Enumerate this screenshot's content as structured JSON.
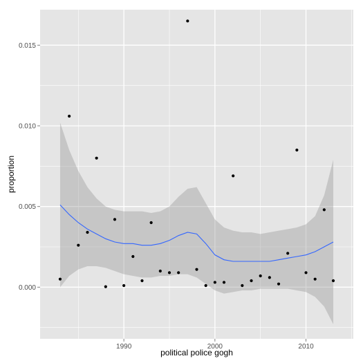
{
  "chart_data": {
    "type": "scatter",
    "xlabel": "political police gogh",
    "ylabel": "proportion",
    "xlim": [
      1980.8,
      2015.2
    ],
    "ylim": [
      -0.0032,
      0.0172
    ],
    "x_ticks": [
      1990,
      2000,
      2010
    ],
    "x_tick_labels": [
      "1990",
      "2000",
      "2010"
    ],
    "y_ticks": [
      0.0,
      0.005,
      0.01,
      0.015
    ],
    "y_tick_labels": [
      "0.000",
      "0.005",
      "0.010",
      "0.015"
    ],
    "grid": true,
    "panel_color": "#e5e5e5",
    "grid_color": "#ffffff",
    "point_color": "#000000",
    "smooth_color": "#3366ff",
    "ribbon_color": "#999999",
    "points": [
      {
        "x": 1983,
        "y": 0.0005
      },
      {
        "x": 1984,
        "y": 0.0106
      },
      {
        "x": 1985,
        "y": 0.0026
      },
      {
        "x": 1986,
        "y": 0.0034
      },
      {
        "x": 1987,
        "y": 0.008
      },
      {
        "x": 1988,
        "y": 3e-05
      },
      {
        "x": 1989,
        "y": 0.0042
      },
      {
        "x": 1990,
        "y": 0.0001
      },
      {
        "x": 1991,
        "y": 0.0019
      },
      {
        "x": 1992,
        "y": 0.0004
      },
      {
        "x": 1993,
        "y": 0.004
      },
      {
        "x": 1994,
        "y": 0.001
      },
      {
        "x": 1995,
        "y": 0.0009
      },
      {
        "x": 1996,
        "y": 0.0009
      },
      {
        "x": 1997,
        "y": 0.0165
      },
      {
        "x": 1998,
        "y": 0.0011
      },
      {
        "x": 1999,
        "y": 0.0001
      },
      {
        "x": 2000,
        "y": 0.0003
      },
      {
        "x": 2001,
        "y": 0.0003
      },
      {
        "x": 2002,
        "y": 0.0069
      },
      {
        "x": 2003,
        "y": 0.0001
      },
      {
        "x": 2004,
        "y": 0.0004
      },
      {
        "x": 2005,
        "y": 0.0007
      },
      {
        "x": 2006,
        "y": 0.0006
      },
      {
        "x": 2007,
        "y": 0.0002
      },
      {
        "x": 2008,
        "y": 0.0021
      },
      {
        "x": 2009,
        "y": 0.0085
      },
      {
        "x": 2010,
        "y": 0.0009
      },
      {
        "x": 2011,
        "y": 0.0005
      },
      {
        "x": 2012,
        "y": 0.0048
      },
      {
        "x": 2013,
        "y": 0.0004
      }
    ],
    "smooth": {
      "x": [
        1983,
        1984,
        1985,
        1986,
        1987,
        1988,
        1989,
        1990,
        1991,
        1992,
        1993,
        1994,
        1995,
        1996,
        1997,
        1998,
        1999,
        2000,
        2001,
        2002,
        2003,
        2004,
        2005,
        2006,
        2007,
        2008,
        2009,
        2010,
        2011,
        2012,
        2013
      ],
      "y": [
        0.0051,
        0.0045,
        0.004,
        0.0036,
        0.0033,
        0.003,
        0.0028,
        0.0027,
        0.0027,
        0.0026,
        0.0026,
        0.0027,
        0.0029,
        0.0032,
        0.0034,
        0.0033,
        0.0027,
        0.002,
        0.0017,
        0.0016,
        0.0016,
        0.0016,
        0.0016,
        0.0016,
        0.0017,
        0.0018,
        0.0019,
        0.002,
        0.0022,
        0.0025,
        0.0028
      ],
      "upper": [
        0.0102,
        0.0085,
        0.0072,
        0.0062,
        0.0055,
        0.005,
        0.0048,
        0.0047,
        0.0047,
        0.0047,
        0.0046,
        0.0047,
        0.005,
        0.0056,
        0.0061,
        0.0062,
        0.0052,
        0.0042,
        0.0037,
        0.0035,
        0.0034,
        0.0034,
        0.0033,
        0.0034,
        0.0035,
        0.0036,
        0.0037,
        0.0039,
        0.0044,
        0.0057,
        0.0079
      ],
      "lower": [
        0.0,
        0.0007,
        0.0011,
        0.0013,
        0.0013,
        0.0012,
        0.001,
        0.0008,
        0.0007,
        0.0006,
        0.0006,
        0.0007,
        0.0007,
        0.0008,
        0.0008,
        0.0006,
        0.0002,
        -0.0002,
        -0.0004,
        -0.0003,
        -0.0002,
        -0.0002,
        -0.0001,
        -0.0001,
        -0.0001,
        -0.0001,
        -0.0002,
        -0.0003,
        -0.0006,
        -0.0012,
        -0.0023
      ]
    }
  }
}
